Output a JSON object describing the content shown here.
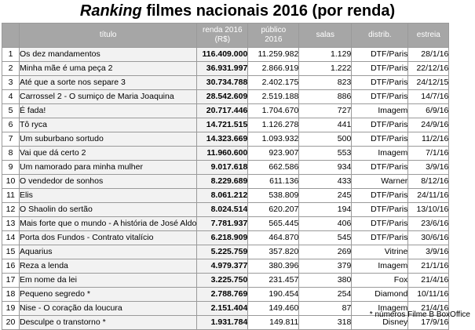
{
  "title": {
    "emphasis": "Ranking",
    "rest": " filmes nacionais 2016 (por renda)"
  },
  "headers": {
    "titulo": "título",
    "renda_l1": "renda 2016",
    "renda_l2": "(R$)",
    "publico_l1": "público",
    "publico_l2": "2016",
    "salas": "salas",
    "distrib": "distrib.",
    "estreia": "estreia"
  },
  "rows": [
    {
      "rank": "1",
      "titulo": "Os dez mandamentos",
      "renda": "116.409.000",
      "publico": "11.259.982",
      "salas": "1.129",
      "distrib": "DTF/Paris",
      "estreia": "28/1/16"
    },
    {
      "rank": "2",
      "titulo": "Minha mãe é uma peça 2",
      "renda": "36.931.997",
      "publico": "2.866.919",
      "salas": "1.222",
      "distrib": "DTF/Paris",
      "estreia": "22/12/16"
    },
    {
      "rank": "3",
      "titulo": "Até que a sorte nos separe 3",
      "renda": "30.734.788",
      "publico": "2.402.175",
      "salas": "823",
      "distrib": "DTF/Paris",
      "estreia": "24/12/15"
    },
    {
      "rank": "4",
      "titulo": "Carrossel 2 - O sumiço de Maria Joaquina",
      "renda": "28.542.609",
      "publico": "2.519.188",
      "salas": "886",
      "distrib": "DTF/Paris",
      "estreia": "14/7/16"
    },
    {
      "rank": "5",
      "titulo": "É fada!",
      "renda": "20.717.446",
      "publico": "1.704.670",
      "salas": "727",
      "distrib": "Imagem",
      "estreia": "6/9/16"
    },
    {
      "rank": "6",
      "titulo": "Tô ryca",
      "renda": "14.721.515",
      "publico": "1.126.278",
      "salas": "441",
      "distrib": "DTF/Paris",
      "estreia": "24/9/16"
    },
    {
      "rank": "7",
      "titulo": "Um suburbano sortudo",
      "renda": "14.323.669",
      "publico": "1.093.932",
      "salas": "500",
      "distrib": "DTF/Paris",
      "estreia": "11/2/16"
    },
    {
      "rank": "8",
      "titulo": "Vai que dá certo 2",
      "renda": "11.960.600",
      "publico": "923.907",
      "salas": "553",
      "distrib": "Imagem",
      "estreia": "7/1/16"
    },
    {
      "rank": "9",
      "titulo": "Um namorado para minha mulher",
      "renda": "9.017.618",
      "publico": "662.586",
      "salas": "934",
      "distrib": "DTF/Paris",
      "estreia": "3/9/16"
    },
    {
      "rank": "10",
      "titulo": "O vendedor de sonhos",
      "renda": "8.229.689",
      "publico": "611.136",
      "salas": "433",
      "distrib": "Warner",
      "estreia": "8/12/16"
    },
    {
      "rank": "11",
      "titulo": "Elis",
      "renda": "8.061.212",
      "publico": "538.809",
      "salas": "245",
      "distrib": "DTF/Paris",
      "estreia": "24/11/16"
    },
    {
      "rank": "12",
      "titulo": "O Shaolin do sertão",
      "renda": "8.024.514",
      "publico": "620.207",
      "salas": "194",
      "distrib": "DTF/Paris",
      "estreia": "13/10/16"
    },
    {
      "rank": "13",
      "titulo": "Mais forte que o mundo - A história de José Aldo",
      "renda": "7.781.937",
      "publico": "565.445",
      "salas": "406",
      "distrib": "DTF/Paris",
      "estreia": "23/6/16"
    },
    {
      "rank": "14",
      "titulo": "Porta dos Fundos - Contrato vitalício",
      "renda": "6.218.909",
      "publico": "464.870",
      "salas": "545",
      "distrib": "DTF/Paris",
      "estreia": "30/6/16"
    },
    {
      "rank": "15",
      "titulo": "Aquarius",
      "renda": "5.225.759",
      "publico": "357.820",
      "salas": "269",
      "distrib": "Vitrine",
      "estreia": "3/9/16"
    },
    {
      "rank": "16",
      "titulo": "Reza a lenda",
      "renda": "4.979.377",
      "publico": "380.396",
      "salas": "379",
      "distrib": "Imagem",
      "estreia": "21/1/16"
    },
    {
      "rank": "17",
      "titulo": "Em nome da lei",
      "renda": "3.225.750",
      "publico": "231.457",
      "salas": "380",
      "distrib": "Fox",
      "estreia": "21/4/16"
    },
    {
      "rank": "18",
      "titulo": "Pequeno segredo *",
      "renda": "2.788.769",
      "publico": "190.454",
      "salas": "254",
      "distrib": "Diamond",
      "estreia": "10/11/16"
    },
    {
      "rank": "19",
      "titulo": "Nise - O coração da loucura",
      "renda": "2.151.404",
      "publico": "149.460",
      "salas": "87",
      "distrib": "Imagem",
      "estreia": "21/4/16"
    },
    {
      "rank": "20",
      "titulo": "Desculpe o transtorno *",
      "renda": "1.931.784",
      "publico": "149.811",
      "salas": "318",
      "distrib": "Disney",
      "estreia": "17/9/16"
    }
  ],
  "footnote": "* números Filme B BoxOffice",
  "colors": {
    "header_bg": "#a6a6a6",
    "shaded_cell": "#f2f2f2",
    "grid": "#9a9a9a"
  }
}
